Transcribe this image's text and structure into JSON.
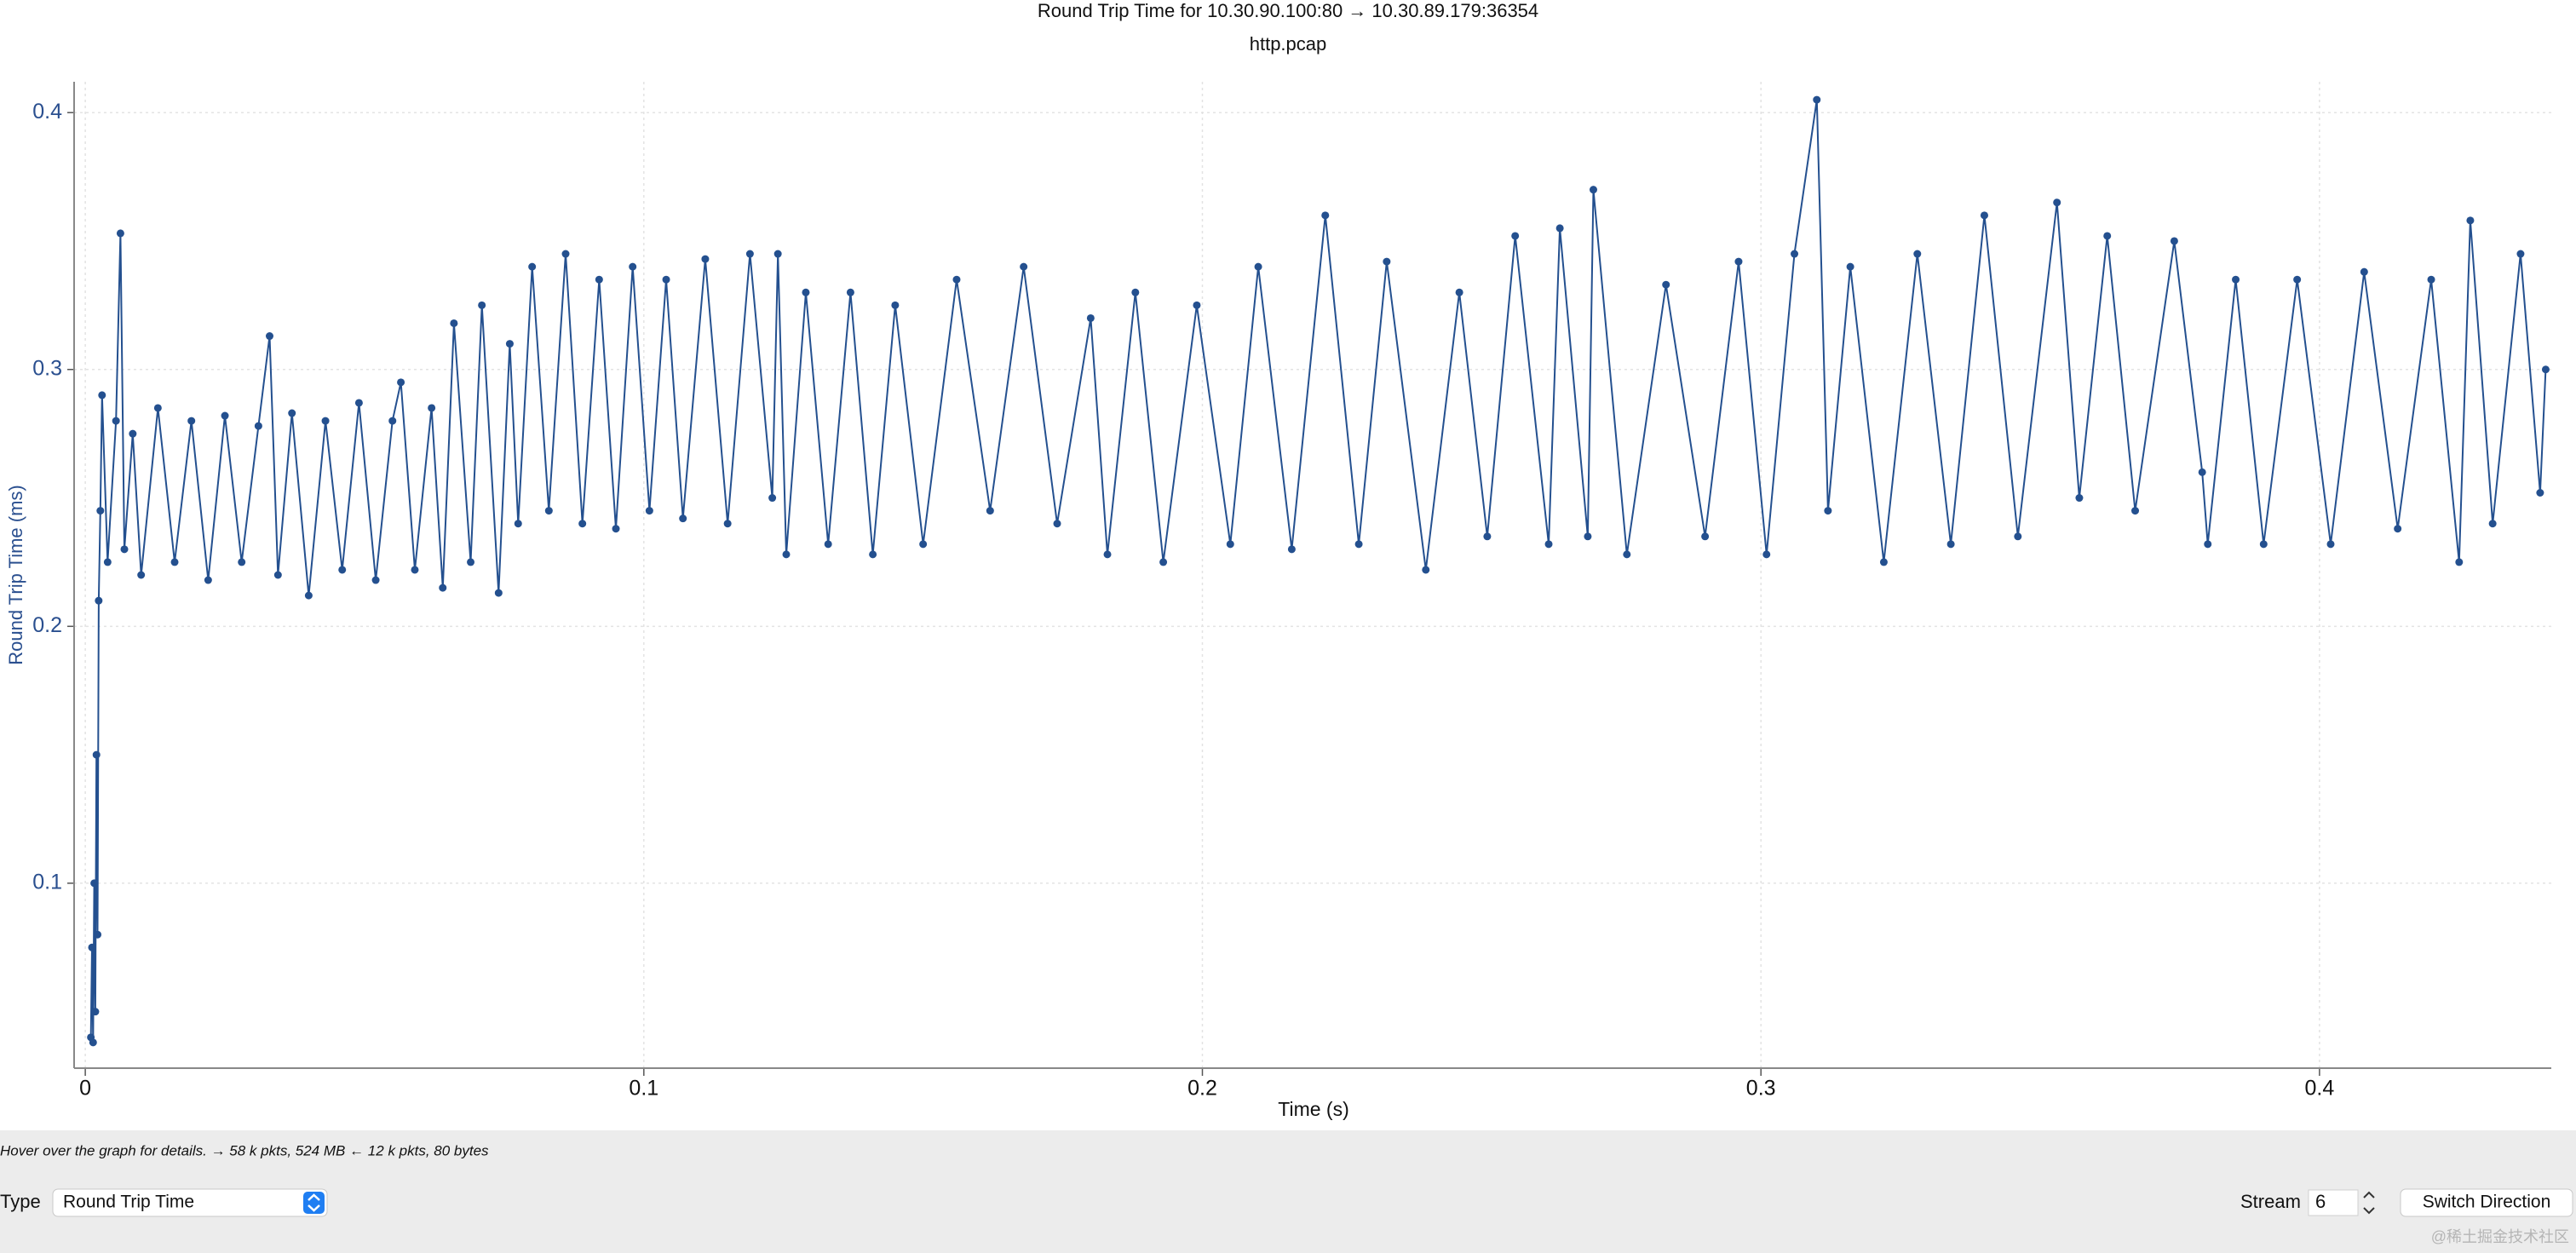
{
  "chart_data": {
    "type": "line",
    "title": "Round Trip Time for 10.30.90.100:80 → 10.30.89.179:36354",
    "subtitle": "http.pcap",
    "x_label": "Time (s)",
    "y_label": "Round Trip Time (ms)",
    "color": "#24508f",
    "grid": true,
    "xlim": [
      -0.002,
      0.4415
    ],
    "ylim": [
      0.028,
      0.412
    ],
    "xticks": [
      0,
      0.1,
      0.2,
      0.3,
      0.4
    ],
    "yticks": [
      0.1,
      0.2,
      0.3,
      0.4
    ],
    "x": [
      0.001,
      0.0012,
      0.0014,
      0.0016,
      0.0018,
      0.002,
      0.0022,
      0.0024,
      0.0027,
      0.003,
      0.004,
      0.0055,
      0.0063,
      0.007,
      0.0085,
      0.01,
      0.013,
      0.016,
      0.019,
      0.022,
      0.025,
      0.028,
      0.031,
      0.033,
      0.0345,
      0.037,
      0.04,
      0.043,
      0.046,
      0.049,
      0.052,
      0.055,
      0.0565,
      0.059,
      0.062,
      0.064,
      0.066,
      0.069,
      0.071,
      0.074,
      0.076,
      0.0775,
      0.08,
      0.083,
      0.086,
      0.089,
      0.092,
      0.095,
      0.098,
      0.101,
      0.104,
      0.107,
      0.111,
      0.115,
      0.119,
      0.123,
      0.124,
      0.1255,
      0.129,
      0.133,
      0.137,
      0.141,
      0.145,
      0.15,
      0.156,
      0.162,
      0.168,
      0.174,
      0.18,
      0.183,
      0.188,
      0.193,
      0.199,
      0.205,
      0.21,
      0.216,
      0.222,
      0.228,
      0.233,
      0.24,
      0.246,
      0.251,
      0.256,
      0.262,
      0.264,
      0.269,
      0.27,
      0.276,
      0.283,
      0.29,
      0.296,
      0.301,
      0.306,
      0.31,
      0.312,
      0.316,
      0.322,
      0.328,
      0.334,
      0.34,
      0.346,
      0.353,
      0.357,
      0.362,
      0.367,
      0.374,
      0.379,
      0.38,
      0.385,
      0.39,
      0.396,
      0.402,
      0.408,
      0.414,
      0.42,
      0.425,
      0.427,
      0.431,
      0.436,
      0.4395,
      0.4405
    ],
    "values": [
      0.04,
      0.075,
      0.038,
      0.1,
      0.05,
      0.15,
      0.08,
      0.21,
      0.245,
      0.29,
      0.225,
      0.28,
      0.353,
      0.23,
      0.275,
      0.22,
      0.285,
      0.225,
      0.28,
      0.218,
      0.282,
      0.225,
      0.278,
      0.313,
      0.22,
      0.283,
      0.212,
      0.28,
      0.222,
      0.287,
      0.218,
      0.28,
      0.295,
      0.222,
      0.285,
      0.215,
      0.318,
      0.225,
      0.325,
      0.213,
      0.31,
      0.24,
      0.34,
      0.245,
      0.345,
      0.24,
      0.335,
      0.238,
      0.34,
      0.245,
      0.335,
      0.242,
      0.343,
      0.24,
      0.345,
      0.25,
      0.345,
      0.228,
      0.33,
      0.232,
      0.33,
      0.228,
      0.325,
      0.232,
      0.335,
      0.245,
      0.34,
      0.24,
      0.32,
      0.228,
      0.33,
      0.225,
      0.325,
      0.232,
      0.34,
      0.23,
      0.36,
      0.232,
      0.342,
      0.222,
      0.33,
      0.235,
      0.352,
      0.232,
      0.355,
      0.235,
      0.37,
      0.228,
      0.333,
      0.235,
      0.342,
      0.228,
      0.345,
      0.405,
      0.245,
      0.34,
      0.225,
      0.345,
      0.232,
      0.36,
      0.235,
      0.365,
      0.25,
      0.352,
      0.245,
      0.35,
      0.26,
      0.232,
      0.335,
      0.232,
      0.335,
      0.232,
      0.338,
      0.238,
      0.335,
      0.225,
      0.358,
      0.24,
      0.345,
      0.252,
      0.3
    ]
  },
  "status_text": "Hover over the graph for details. → 58 k pkts, 524 MB ← 12 k pkts, 80 bytes",
  "controls": {
    "type_label": "Type",
    "type_value": "Round Trip Time",
    "stream_label": "Stream",
    "stream_value": "6",
    "switch_button": "Switch Direction"
  },
  "watermark": "@稀土掘金技术社区"
}
